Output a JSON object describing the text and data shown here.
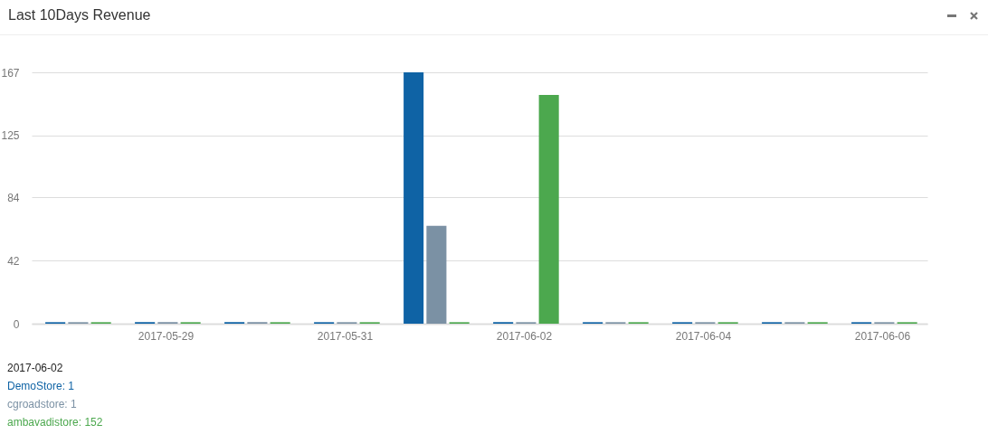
{
  "chart_data": {
    "type": "bar",
    "title": "Last 10Days Revenue",
    "categories": [
      null,
      "2017-05-29",
      null,
      "2017-05-31",
      null,
      "2017-06-02",
      null,
      "2017-06-04",
      null,
      "2017-06-06"
    ],
    "series": [
      {
        "color": "#0f63a5",
        "values": [
          1,
          1,
          1,
          1,
          167,
          1,
          1,
          1,
          1,
          1
        ]
      },
      {
        "color": "#7b91a4",
        "values": [
          1,
          1,
          1,
          1,
          65,
          1,
          1,
          1,
          1,
          1
        ]
      },
      {
        "color": "#4ca84e",
        "values": [
          1,
          1,
          1,
          1,
          1,
          152,
          1,
          1,
          1,
          1
        ]
      }
    ],
    "ylim": [
      0,
      167
    ],
    "yticks": [
      0,
      42,
      84,
      125,
      167
    ],
    "grid": "y",
    "legend": false,
    "annotations": [
      "2017-06-02",
      "DemoStore: 1",
      "cgroadstore: 1",
      "ambavadistore: 152"
    ]
  }
}
